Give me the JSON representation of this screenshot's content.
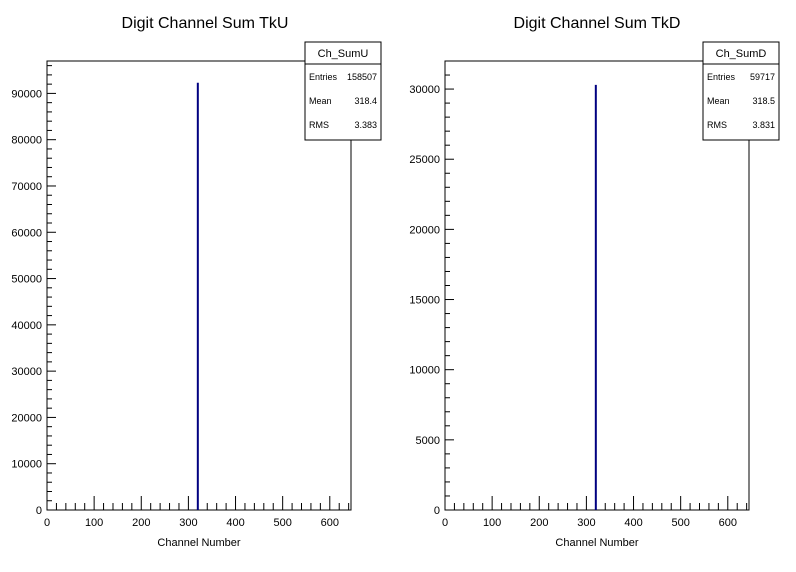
{
  "chart_data": [
    {
      "type": "bar",
      "histogram": true,
      "title": "Digit Channel Sum TkU",
      "xlabel": "Channel Number",
      "ylabel": "",
      "xlim": [
        0,
        645
      ],
      "ylim": [
        0,
        97000
      ],
      "x_ticks": [
        0,
        100,
        200,
        300,
        400,
        500,
        600
      ],
      "y_ticks": [
        0,
        10000,
        20000,
        30000,
        40000,
        50000,
        60000,
        70000,
        80000,
        90000
      ],
      "bins": [
        {
          "x": 320,
          "value": 92300
        }
      ],
      "line_color": "#000080",
      "grid": false,
      "stats": {
        "name": "Ch_SumU",
        "rows": [
          {
            "label": "Entries",
            "value": "158507"
          },
          {
            "label": "Mean",
            "value": "318.4"
          },
          {
            "label": "RMS",
            "value": "3.383"
          }
        ],
        "placement": "top-right"
      }
    },
    {
      "type": "bar",
      "histogram": true,
      "title": "Digit Channel Sum TkD",
      "xlabel": "Channel Number",
      "ylabel": "",
      "xlim": [
        0,
        645
      ],
      "ylim": [
        0,
        32000
      ],
      "x_ticks": [
        0,
        100,
        200,
        300,
        400,
        500,
        600
      ],
      "y_ticks": [
        0,
        5000,
        10000,
        15000,
        20000,
        25000,
        30000
      ],
      "bins": [
        {
          "x": 320,
          "value": 30300
        }
      ],
      "line_color": "#000080",
      "grid": false,
      "stats": {
        "name": "Ch_SumD",
        "rows": [
          {
            "label": "Entries",
            "value": "59717"
          },
          {
            "label": "Mean",
            "value": "318.5"
          },
          {
            "label": "RMS",
            "value": "3.831"
          }
        ],
        "placement": "top-right"
      }
    }
  ]
}
